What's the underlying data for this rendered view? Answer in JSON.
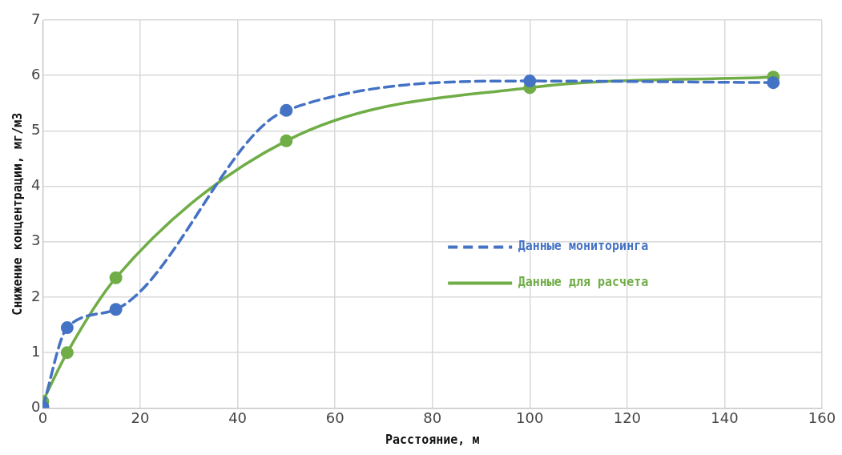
{
  "chart_data": {
    "type": "line",
    "xlabel": "Расстояние, м",
    "ylabel": "Снижение концентрации, мг/м3",
    "x": [
      0,
      5,
      15,
      50,
      100,
      150
    ],
    "series": [
      {
        "name": "Данные мониторинга",
        "color": "#4472c4",
        "line_style": "dashed",
        "values": [
          0.02,
          1.45,
          1.78,
          5.37,
          5.9,
          5.87
        ]
      },
      {
        "name": "Данные для расчета",
        "color": "#70ad47",
        "line_style": "solid",
        "values": [
          0.12,
          1.0,
          2.35,
          4.82,
          5.78,
          5.97
        ]
      }
    ],
    "xlim": [
      0,
      160
    ],
    "xticks": [
      0,
      20,
      40,
      60,
      80,
      100,
      120,
      140,
      160
    ],
    "ylim": [
      0,
      7
    ],
    "yticks": [
      0,
      1,
      2,
      3,
      4,
      5,
      6,
      7
    ],
    "grid": true,
    "legend": "right",
    "marker": "circle"
  }
}
